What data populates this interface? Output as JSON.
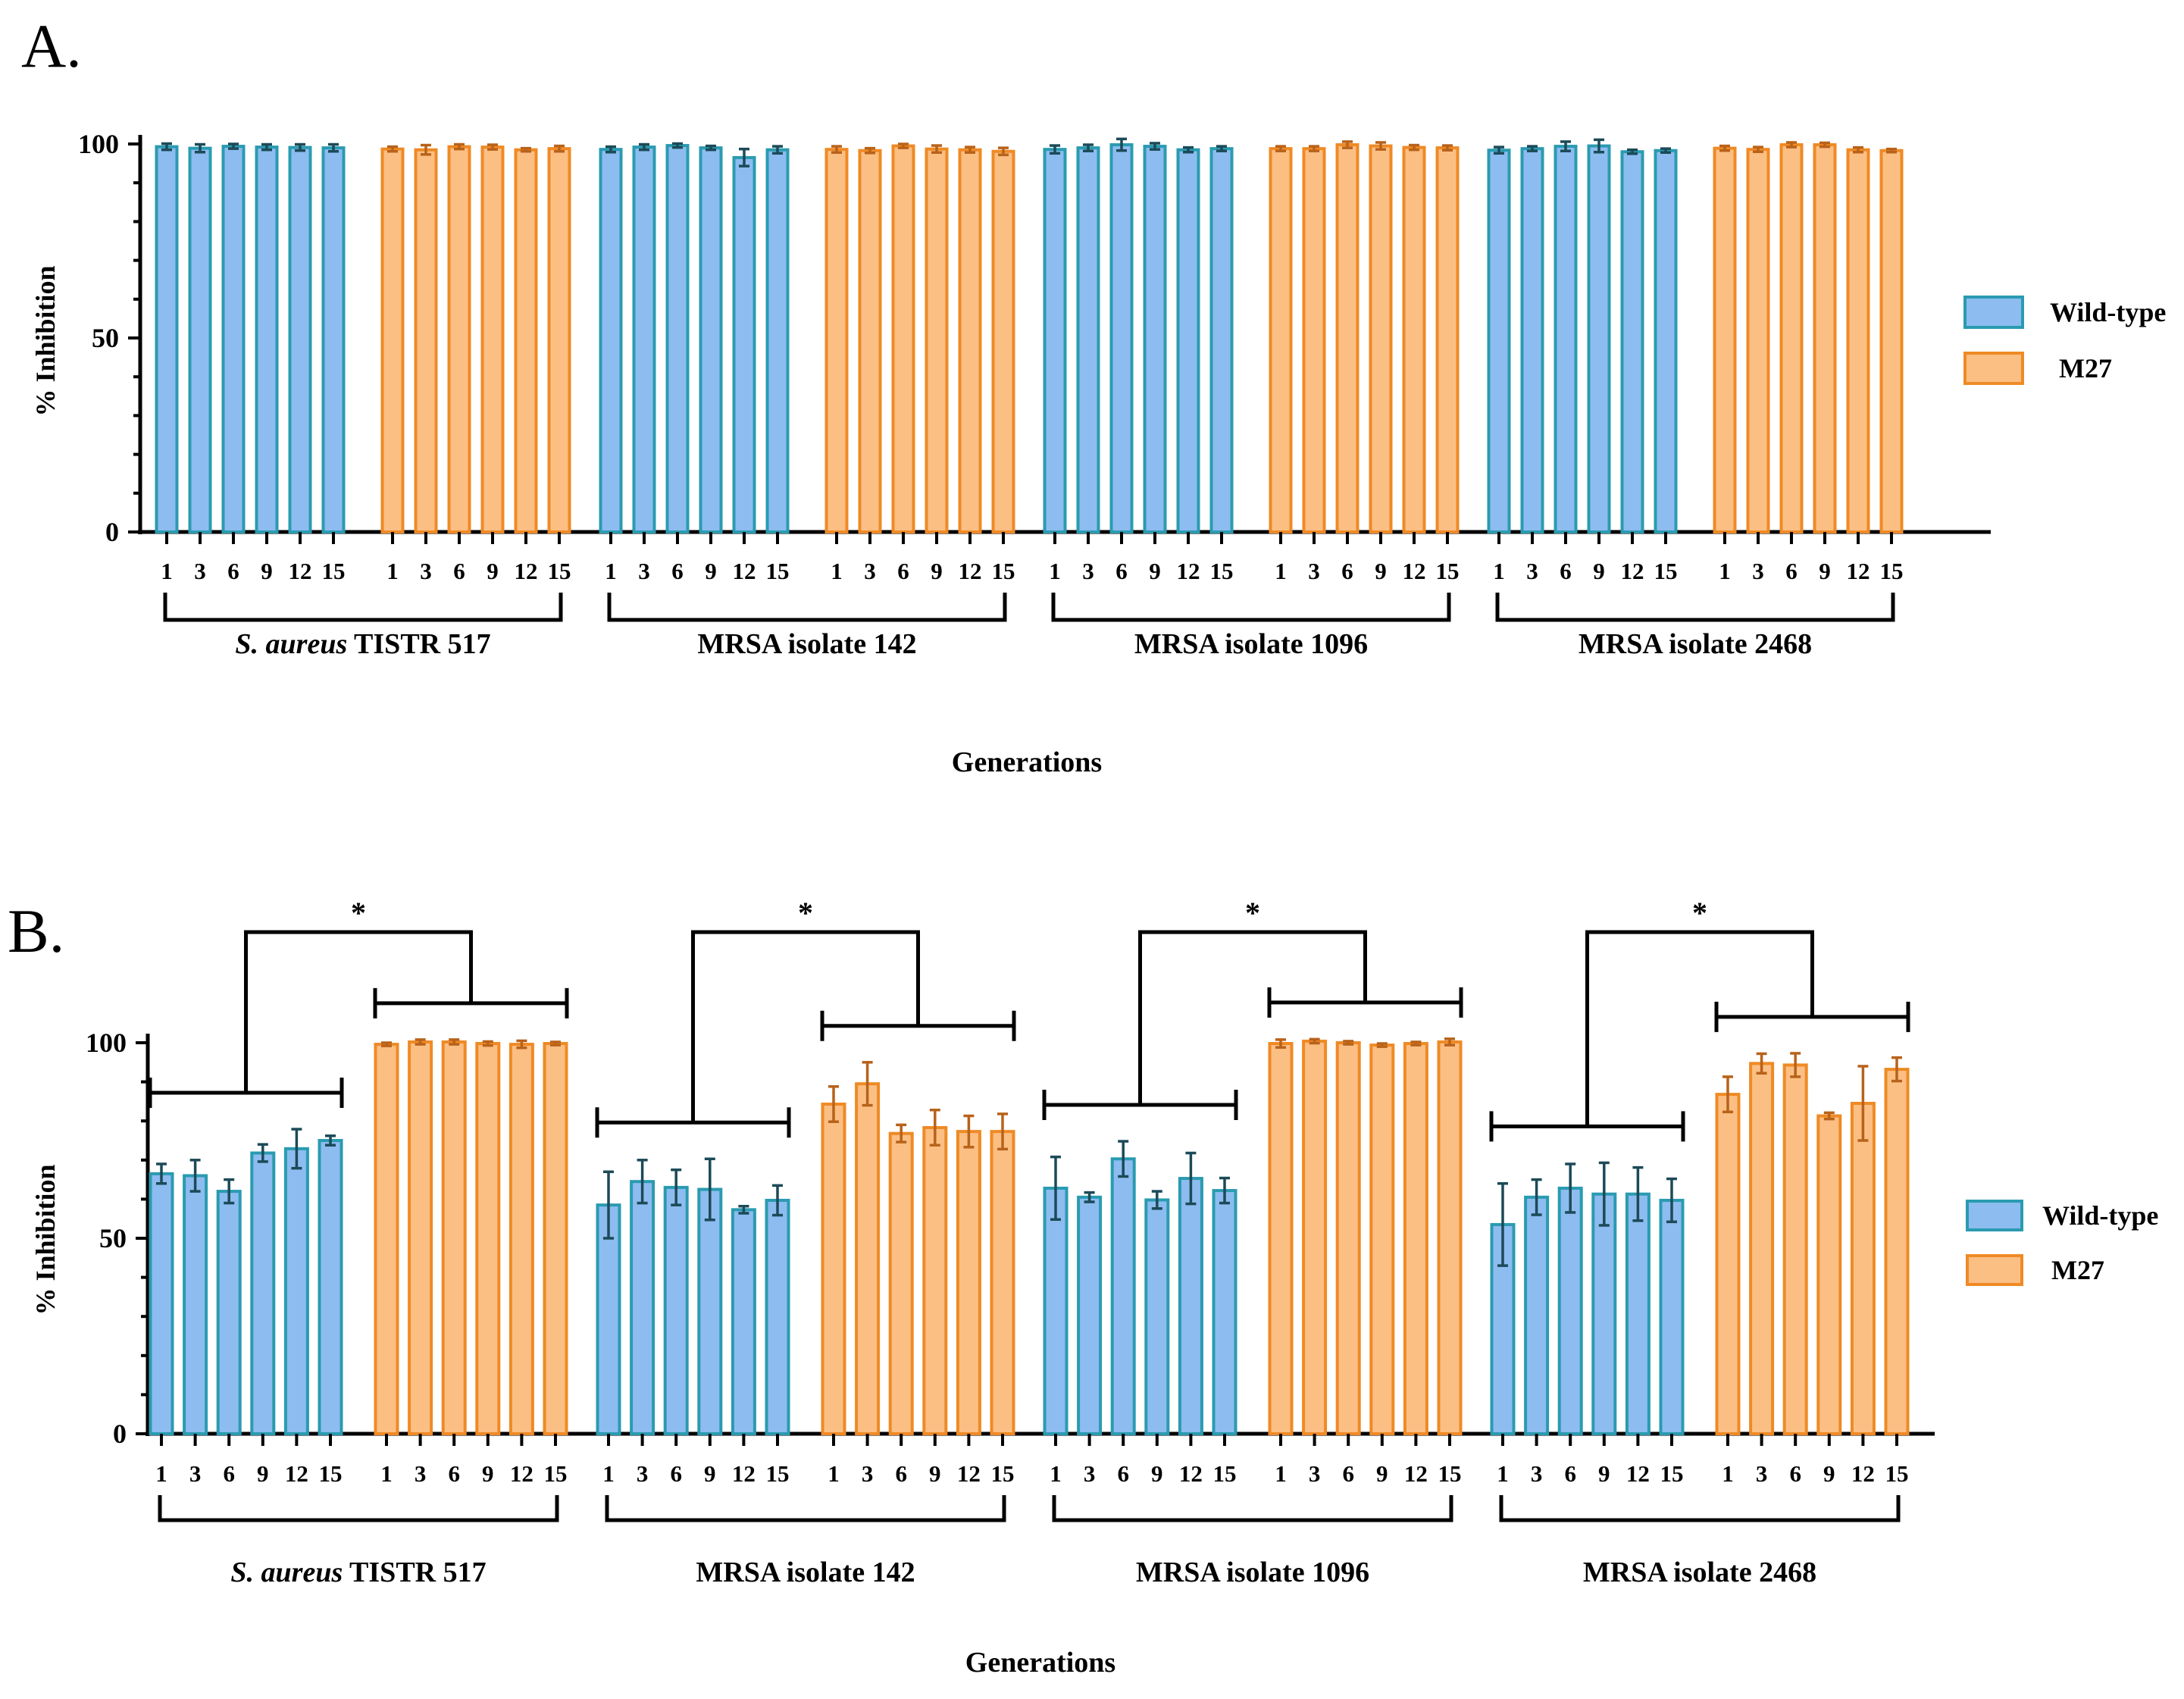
{
  "colors": {
    "wild_fill": "#8dbcf0",
    "wild_stroke": "#2a9bb0",
    "wild_err": "#1c4a58",
    "m27_fill": "#fbbf84",
    "m27_stroke": "#ef8a25",
    "m27_err": "#b8621a",
    "axis": "#000000"
  },
  "chart_data": [
    {
      "panel": "A.",
      "type": "bar",
      "ylabel": "% Inhibition",
      "xlabel": "Generations",
      "ylim": [
        0,
        100
      ],
      "yticks": [
        "0",
        "50",
        "100"
      ],
      "generations": [
        "1",
        "3",
        "6",
        "9",
        "12",
        "15"
      ],
      "legend": [
        "Wild-type",
        "M27"
      ],
      "groups": [
        {
          "label_italic": "S. aureus",
          "label_rest": " TISTR 517",
          "wild": [
            99.3,
            98.9,
            99.4,
            99.2,
            99.1,
            99.0
          ],
          "wild_err": [
            0.8,
            1.0,
            0.6,
            0.7,
            0.8,
            0.9
          ],
          "m27": [
            98.7,
            98.5,
            99.3,
            99.2,
            98.5,
            98.8
          ],
          "m27_err": [
            0.6,
            1.2,
            0.6,
            0.6,
            0.4,
            0.7
          ]
        },
        {
          "label_italic": "",
          "label_rest": "MRSA isolate 142",
          "wild": [
            98.6,
            99.2,
            99.6,
            99.0,
            96.5,
            98.5
          ],
          "wild_err": [
            0.7,
            0.7,
            0.5,
            0.5,
            2.2,
            0.9
          ],
          "m27": [
            98.6,
            98.3,
            99.5,
            98.7,
            98.5,
            98.1
          ],
          "m27_err": [
            0.8,
            0.6,
            0.5,
            0.9,
            0.7,
            0.9
          ]
        },
        {
          "label_italic": "",
          "label_rest": "MRSA isolate 1096",
          "wild": [
            98.6,
            99.0,
            99.8,
            99.4,
            98.5,
            98.8
          ],
          "wild_err": [
            1.0,
            0.8,
            1.5,
            0.8,
            0.6,
            0.6
          ],
          "m27": [
            98.8,
            98.8,
            99.8,
            99.5,
            99.1,
            99.0
          ],
          "m27_err": [
            0.6,
            0.6,
            0.8,
            0.9,
            0.6,
            0.6
          ]
        },
        {
          "label_italic": "",
          "label_rest": "MRSA isolate 2468",
          "wild": [
            98.4,
            98.8,
            99.4,
            99.5,
            98.0,
            98.3
          ],
          "wild_err": [
            0.8,
            0.6,
            1.2,
            1.6,
            0.5,
            0.5
          ],
          "m27": [
            98.9,
            98.6,
            99.8,
            99.8,
            98.5,
            98.3
          ],
          "m27_err": [
            0.6,
            0.6,
            0.6,
            0.5,
            0.6,
            0.4
          ]
        }
      ],
      "significance": []
    },
    {
      "panel": "B.",
      "type": "bar",
      "ylabel": "% Inhibition",
      "xlabel": "Generations",
      "ylim": [
        0,
        100
      ],
      "yticks": [
        "0",
        "50",
        "100"
      ],
      "generations": [
        "1",
        "3",
        "6",
        "9",
        "12",
        "15"
      ],
      "legend": [
        "Wild-type",
        "M27"
      ],
      "groups": [
        {
          "label_italic": "S. aureus",
          "label_rest": " TISTR 517",
          "wild": [
            66.5,
            66.0,
            62.0,
            71.8,
            72.9,
            75.0
          ],
          "wild_err": [
            2.5,
            4.0,
            3.0,
            2.2,
            5.0,
            1.2
          ],
          "m27": [
            99.6,
            100.2,
            100.2,
            99.8,
            99.6,
            99.8
          ],
          "m27_err": [
            0.4,
            0.6,
            0.6,
            0.5,
            0.9,
            0.4
          ]
        },
        {
          "label_italic": "",
          "label_rest": "MRSA isolate 142",
          "wild": [
            58.5,
            64.5,
            63.0,
            62.5,
            57.3,
            59.7
          ],
          "wild_err": [
            8.5,
            5.5,
            4.5,
            7.8,
            0.9,
            3.8
          ],
          "m27": [
            84.3,
            89.5,
            76.8,
            78.3,
            77.3,
            77.3
          ],
          "m27_err": [
            4.5,
            5.5,
            2.2,
            4.5,
            4.0,
            4.5
          ]
        },
        {
          "label_italic": "",
          "label_rest": "MRSA isolate 1096",
          "wild": [
            62.8,
            60.5,
            70.3,
            59.8,
            65.3,
            62.2
          ],
          "wild_err": [
            8.0,
            1.2,
            4.5,
            2.2,
            6.5,
            3.2
          ],
          "m27": [
            99.8,
            100.4,
            100.0,
            99.4,
            99.8,
            100.2
          ],
          "m27_err": [
            1.0,
            0.5,
            0.4,
            0.4,
            0.4,
            0.8
          ]
        },
        {
          "label_italic": "",
          "label_rest": "MRSA isolate 2468",
          "wild": [
            53.5,
            60.5,
            62.8,
            61.3,
            61.3,
            59.7
          ],
          "wild_err": [
            10.5,
            4.5,
            6.2,
            8.0,
            6.8,
            5.5
          ],
          "m27": [
            86.8,
            94.7,
            94.3,
            81.3,
            84.5,
            93.2
          ],
          "m27_err": [
            4.5,
            2.5,
            3.0,
            0.8,
            9.5,
            3.0
          ]
        }
      ],
      "significance": [
        "*",
        "*",
        "*",
        "*"
      ]
    }
  ]
}
